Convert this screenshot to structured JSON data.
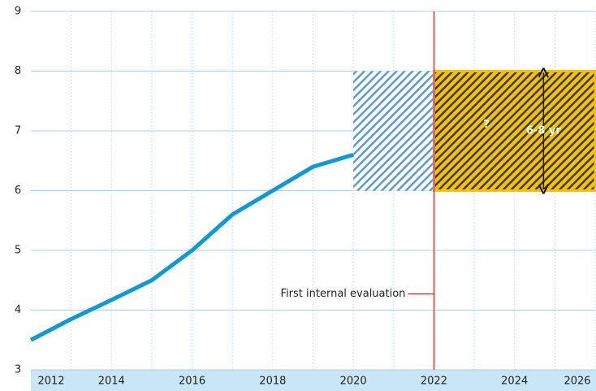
{
  "chart_data": {
    "type": "line",
    "x": [
      2012,
      2013,
      2014,
      2015,
      2016,
      2017,
      2018,
      2019,
      2020
    ],
    "series": [
      {
        "color": "#0a9ad8",
        "values": [
          3.5,
          3.85,
          4.17,
          4.5,
          5.0,
          5.6,
          6.0,
          6.4,
          6.6
        ]
      }
    ],
    "xlim": [
      2012,
      2026
    ],
    "xticks": [
      2012,
      2014,
      2016,
      2018,
      2020,
      2022,
      2024,
      2026
    ],
    "ylim": [
      3,
      9
    ],
    "yticks": [
      3,
      4,
      5,
      6,
      7,
      8,
      9
    ],
    "grid": true,
    "regions": [
      {
        "x": [
          2020,
          2022
        ],
        "y": [
          6,
          8
        ],
        "color": "#5b9bd5"
      },
      {
        "x": [
          2022,
          2026
        ],
        "y": [
          6,
          8
        ],
        "color": "#f3c300"
      }
    ],
    "vline": {
      "x": 2022,
      "color": "#e2231a"
    },
    "annotations": [
      {
        "text": "First internal evaluation",
        "x": 2022,
        "y": 4.27
      },
      {
        "text": "?",
        "x": 2023.3,
        "y": 7.1
      },
      {
        "text": "6-8 yr",
        "x": 2025,
        "y": 7
      }
    ]
  }
}
